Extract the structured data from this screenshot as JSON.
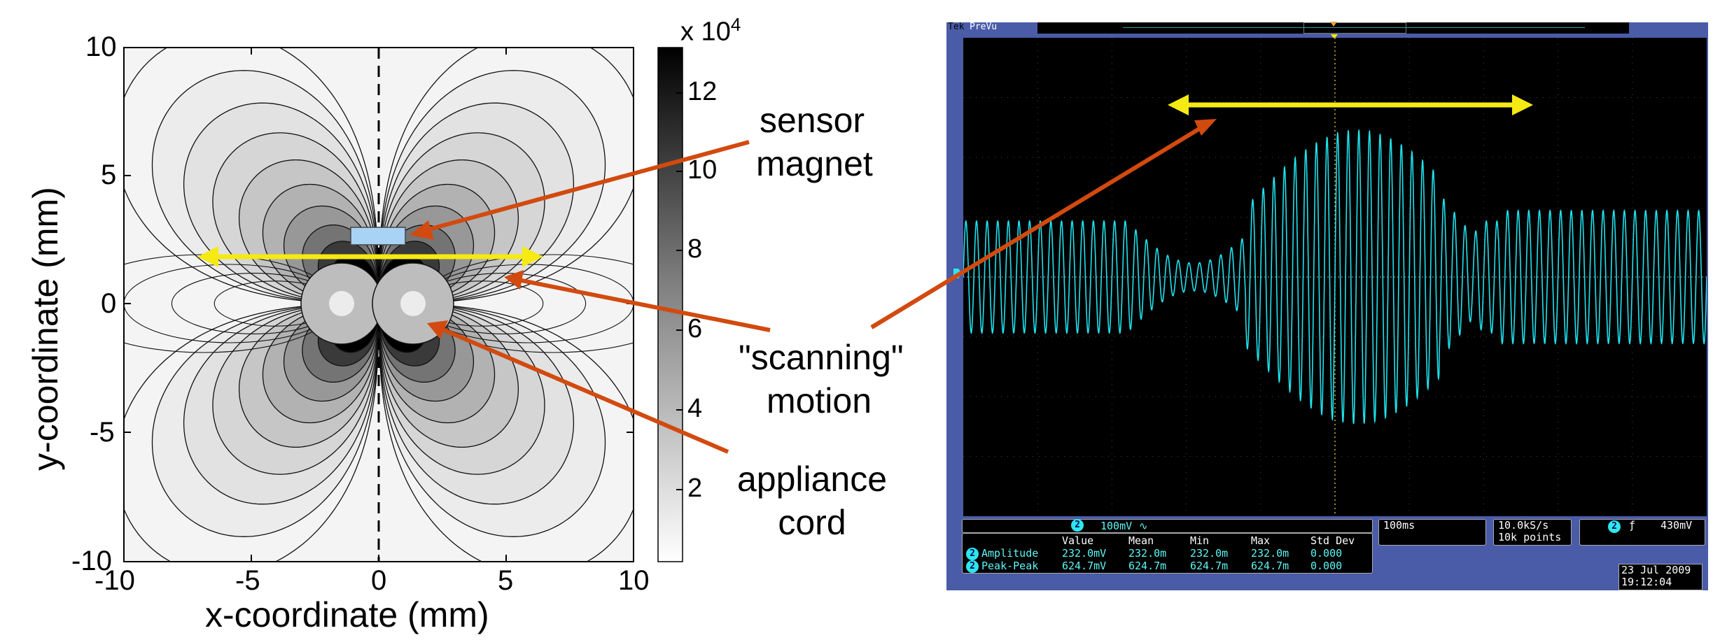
{
  "contour_plot": {
    "x_ticks": [
      "-10",
      "-5",
      "0",
      "5",
      "10"
    ],
    "y_ticks": [
      "10",
      "5",
      "0",
      "-5",
      "-10"
    ],
    "x_label": "x-coordinate (mm)",
    "y_label": "y-coordinate (mm)",
    "colorbar_multiplier": "x 10",
    "colorbar_exponent": "4",
    "colorbar_ticks": [
      "12",
      "10",
      "8",
      "6",
      "4",
      "2"
    ]
  },
  "annotations": {
    "sensor_line1": "sensor",
    "sensor_line2": "magnet",
    "scanning_line1": "\"scanning\"",
    "scanning_line2": "motion",
    "appliance_line1": "appliance",
    "appliance_line2": "cord"
  },
  "colors": {
    "arrow_orange": "#d24a0f",
    "arrow_yellow": "#f5ea13",
    "magnet_blue": "#a8d3f5",
    "scope_trace": "#1ee3ee",
    "scope_frame": "#4a5ca8"
  },
  "oscilloscope": {
    "brand": "Tek",
    "mode": "PreVu",
    "channel_number": "2",
    "channel_scale": "100mV",
    "channel_coupling_icon": "∿",
    "timebase": "100ms",
    "sample_rate": "10.0kS/s",
    "record_length": "10k points",
    "trigger_channel": "2",
    "trigger_icon": "rising-edge-icon",
    "trigger_level": "430mV",
    "meas_headers": [
      "Value",
      "Mean",
      "Min",
      "Max",
      "Std Dev"
    ],
    "measurements": [
      {
        "channel": "2",
        "name": "Amplitude",
        "value": "232.0mV",
        "mean": "232.0m",
        "min": "232.0m",
        "max": "232.0m",
        "std": "0.000"
      },
      {
        "channel": "2",
        "name": "Peak-Peak",
        "value": "624.7mV",
        "mean": "624.7m",
        "min": "624.7m",
        "max": "624.7m",
        "std": "0.000"
      }
    ],
    "date": "23 Jul  2009",
    "time": "19:12:04"
  }
}
